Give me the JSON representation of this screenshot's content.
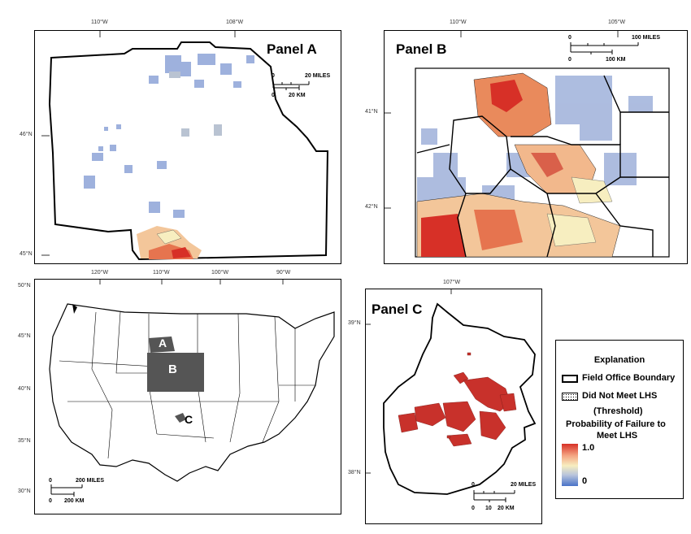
{
  "panel_a": {
    "title": "Panel A",
    "lon_labels": [
      "110°W",
      "108°W"
    ],
    "lat_labels": [
      "46°N",
      "45°N"
    ],
    "scale_miles": [
      "0",
      "20 MILES"
    ],
    "scale_km": [
      "0",
      "20 KM"
    ]
  },
  "panel_b": {
    "title": "Panel B",
    "lon_labels": [
      "110°W",
      "105°W"
    ],
    "lat_labels": [
      "41°N",
      "42°N"
    ],
    "scale_miles": [
      "0",
      "100 MILES"
    ],
    "scale_km": [
      "0",
      "100 KM"
    ]
  },
  "panel_c": {
    "title": "Panel C",
    "lon_labels": [
      "107°W"
    ],
    "lat_labels": [
      "39°N",
      "38°N"
    ],
    "scale_miles": [
      "0",
      "20 MILES"
    ],
    "scale_km": [
      "0",
      "10",
      "20 KM"
    ]
  },
  "overview": {
    "lon_labels": [
      "120°W",
      "110°W",
      "100°W",
      "90°W"
    ],
    "lat_labels": [
      "50°N",
      "45°N",
      "40°N",
      "35°N",
      "30°N"
    ],
    "region_labels": [
      "A",
      "B",
      "C"
    ],
    "scale_miles": [
      "0",
      "200 MILES"
    ],
    "scale_km": [
      "0",
      "200 KM"
    ]
  },
  "legend": {
    "title": "Explanation",
    "boundary_label": "Field Office Boundary",
    "lhs_label": "Did Not Meet LHS",
    "threshold_label": "(Threshold)",
    "prob_label_1": "Probability of Failure to",
    "prob_label_2": "Meet LHS",
    "max_label": "1.0",
    "min_label": "0",
    "colors": {
      "high": "#d73027",
      "mid": "#f7eec0",
      "low": "#4a73c8"
    }
  }
}
